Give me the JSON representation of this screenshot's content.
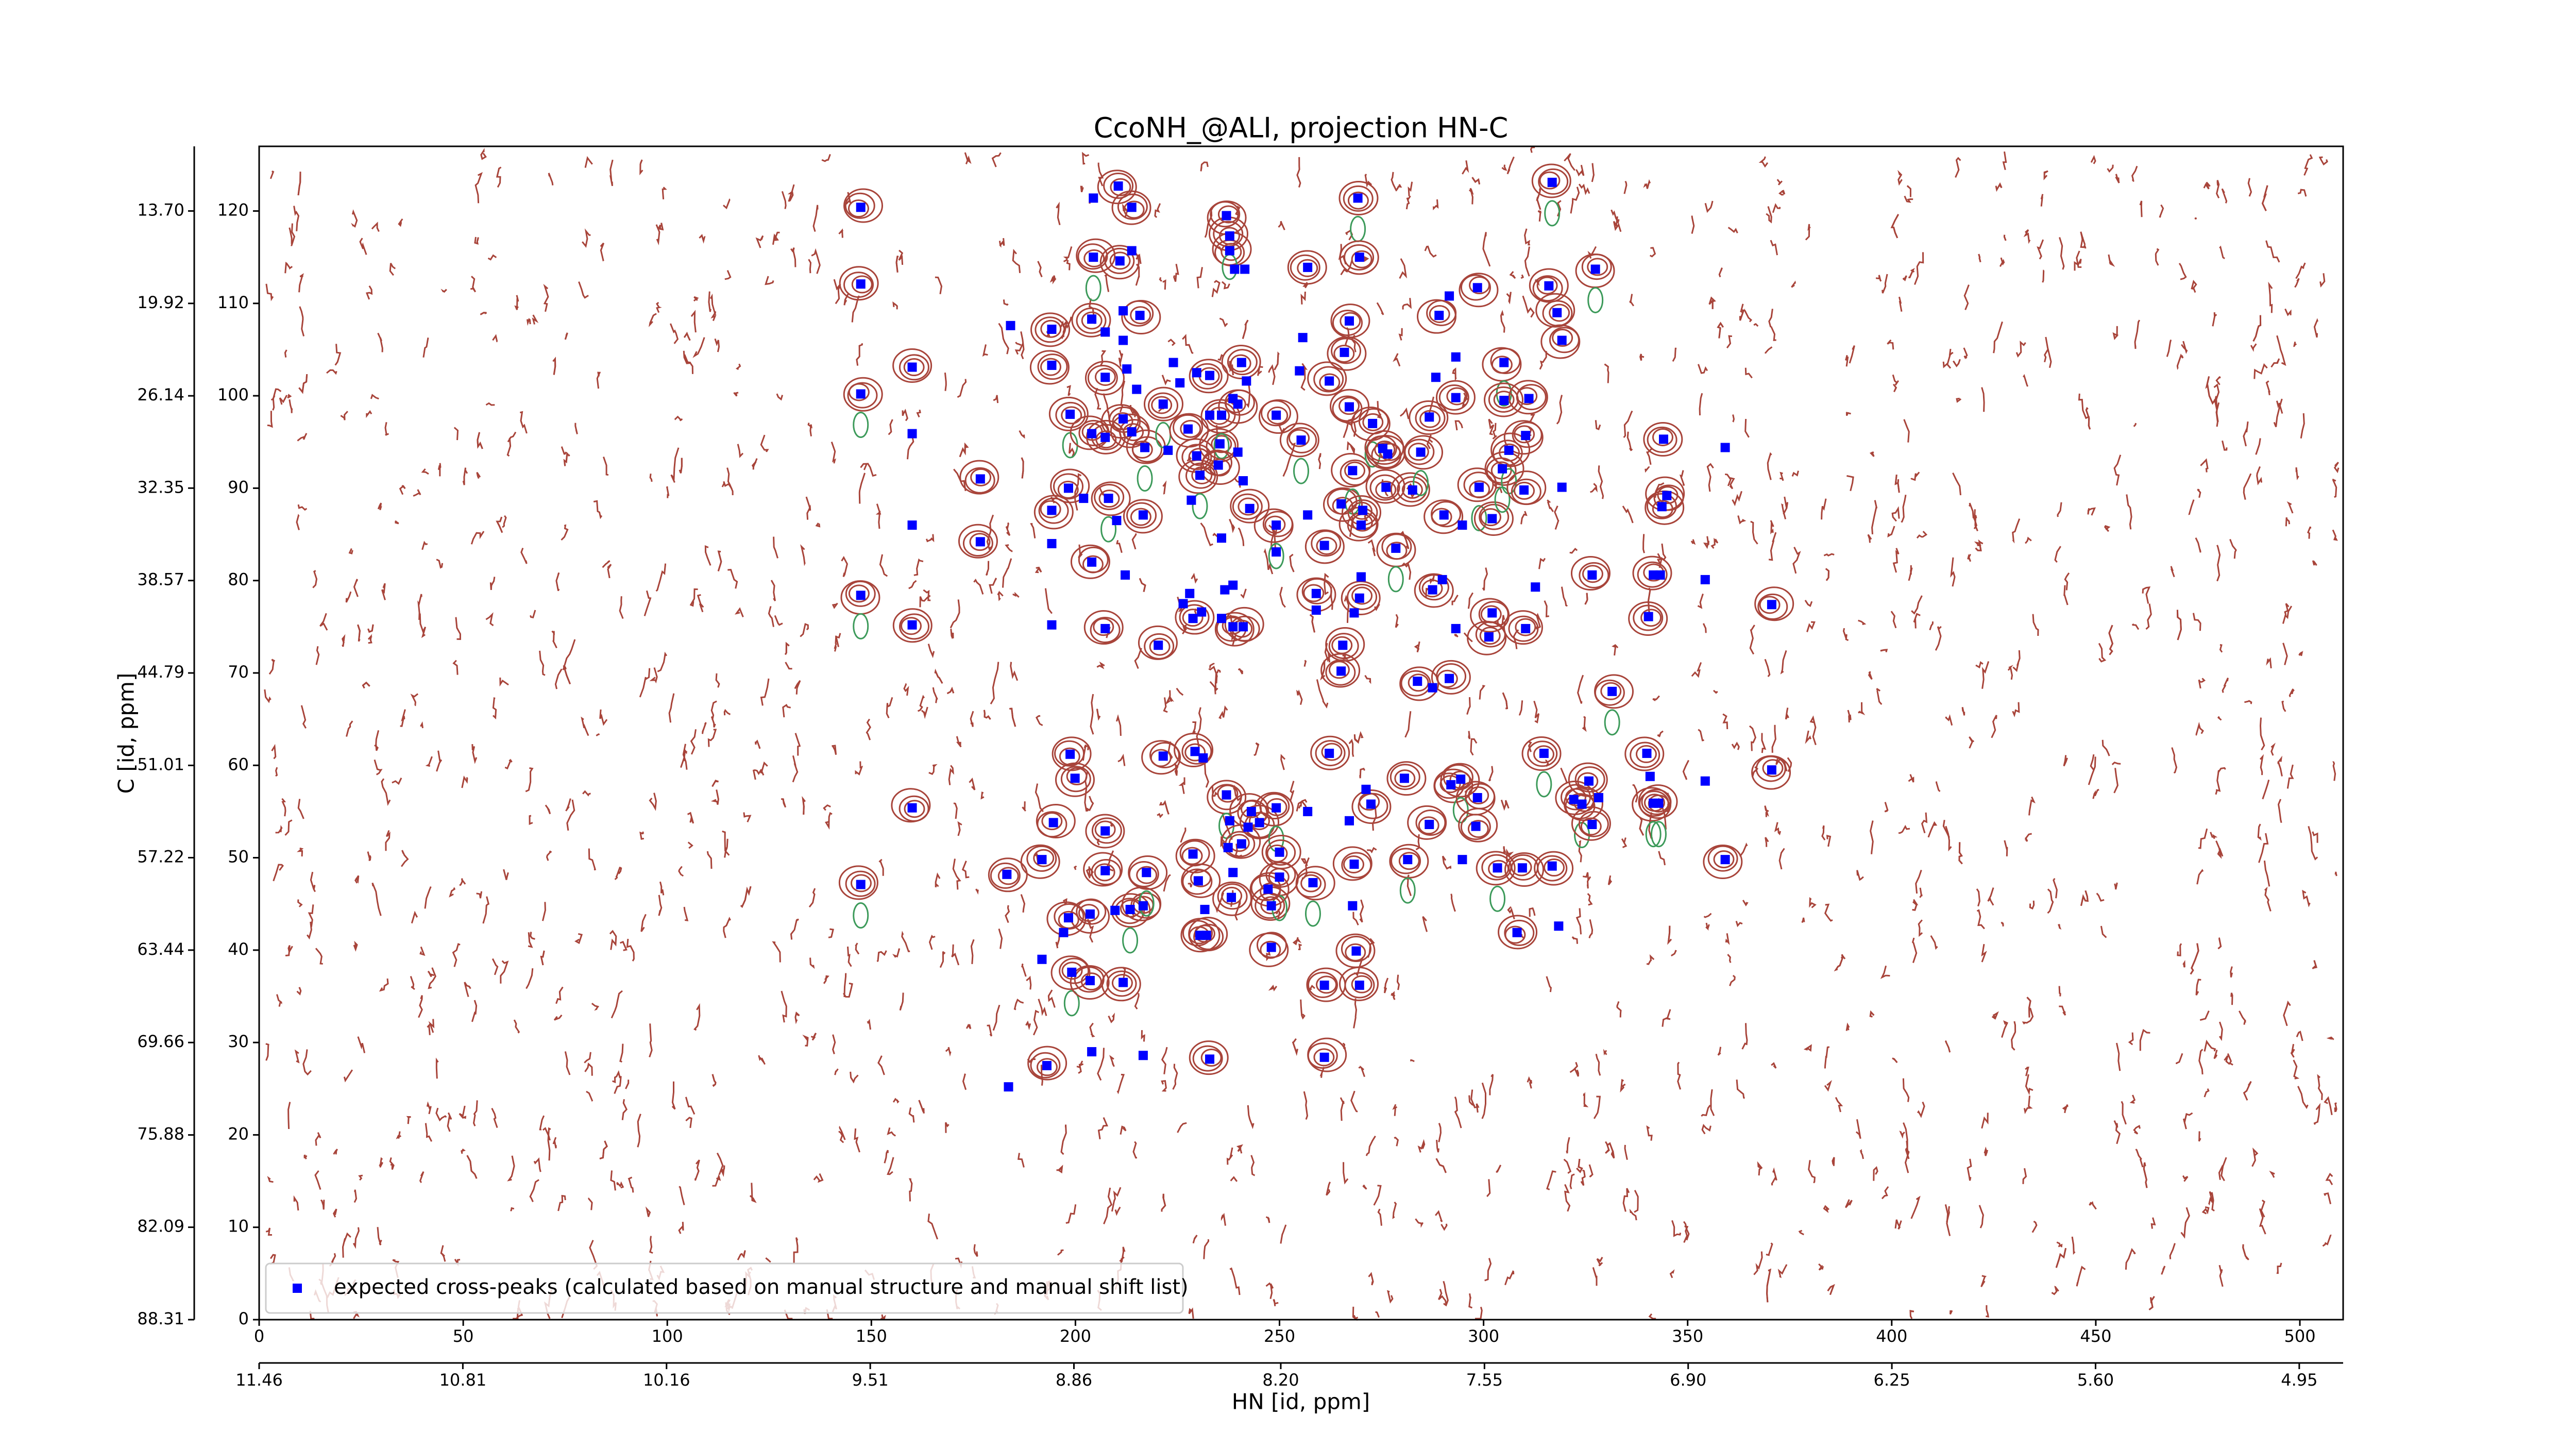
{
  "chart_data": {
    "type": "scatter",
    "title": "CcoNH_@ALI, projection HN-C",
    "x_label": "HN [id, ppm]",
    "y_label": "C [id, ppm]",
    "xlim": [
      0,
      510.6
    ],
    "ylim": [
      0,
      127
    ],
    "xticks": [
      0,
      50,
      100,
      150,
      200,
      250,
      300,
      350,
      400,
      450,
      500
    ],
    "yticks": [
      0,
      10,
      20,
      30,
      40,
      50,
      60,
      70,
      80,
      90,
      100,
      110,
      120
    ],
    "x2lim": [
      11.46,
      4.81
    ],
    "x2ticks": [
      11.46,
      10.81,
      10.16,
      9.51,
      8.86,
      {
        "value": 8.2,
        "label": "8.20"
      },
      7.55,
      {
        "value": 6.9,
        "label": "6.90"
      },
      6.25,
      {
        "value": 5.6,
        "label": "5.60"
      },
      4.95
    ],
    "y2lim": [
      88.31,
      9.35
    ],
    "y2ticks": [
      88.31,
      82.09,
      75.88,
      69.66,
      63.44,
      57.22,
      51.01,
      44.79,
      38.57,
      32.35,
      26.14,
      19.92,
      {
        "value": 13.7,
        "label": "13.70"
      }
    ],
    "legend": "lower left",
    "series": [
      {
        "name": "expected cross-peaks (calculated based on manual structure and manual shift list)",
        "color": "#0000ff",
        "x": [
          147.4,
          147.4,
          147.4,
          147.4,
          147.4,
          160.0,
          160.0,
          160.0,
          160.0,
          160.0,
          176.7,
          176.7,
          184.1,
          183.2,
          183.6,
          191.8,
          193.0,
          194.2,
          194.2,
          194.2,
          194.2,
          194.2,
          194.6,
          191.8,
          199.9,
          198.7,
          198.7,
          198.3,
          202.0,
          204.0,
          204.4,
          204.4,
          204.0,
          204.0,
          207.3,
          207.3,
          207.3,
          207.3,
          207.3,
          207.3,
          208.1,
          210.5,
          210.9,
          210.1,
          211.7,
          211.7,
          211.7,
          211.7,
          212.6,
          213.8,
          213.8,
          213.8,
          212.2,
          215.0,
          215.8,
          217.0,
          216.6,
          216.6,
          216.6,
          209.7,
          213.4,
          199.1,
          197.1,
          198.3,
          203.6,
          203.6,
          204.0,
          217.4,
          221.5,
          220.3,
          221.5,
          222.7,
          224.0,
          225.6,
          227.6,
          228.4,
          229.7,
          229.7,
          230.5,
          226.4,
          228.0,
          228.8,
          230.9,
          232.1,
          230.5,
          231.7,
          230.1,
          228.8,
          229.3,
          231.3,
          232.9,
          232.9,
          232.9,
          235.4,
          235.8,
          235.8,
          235.0,
          236.6,
          237.0,
          237.4,
          238.6,
          238.6,
          238.6,
          238.6,
          240.7,
          237.8,
          237.8,
          238.2,
          235.8,
          237.0,
          237.8,
          239.0,
          241.5,
          241.9,
          240.7,
          239.8,
          239.8,
          241.1,
          241.1,
          242.7,
          242.3,
          243.1,
          245.1,
          248.0,
          248.0,
          249.2,
          249.2,
          249.2,
          249.2,
          250.0,
          250.0,
          247.2,
          256.9,
          256.9,
          256.9,
          255.7,
          254.9,
          255.3,
          258.2,
          259.0,
          259.0,
          261.0,
          261.0,
          261.0,
          262.2,
          262.2,
          265.1,
          265.1,
          265.5,
          265.9,
          267.1,
          267.1,
          267.1,
          267.9,
          267.9,
          268.8,
          269.2,
          269.6,
          269.6,
          269.6,
          268.3,
          268.3,
          270.0,
          270.0,
          270.4,
          271.2,
          272.8,
          272.4,
          275.3,
          276.5,
          276.1,
          278.5,
          280.6,
          281.4,
          282.6,
          283.8,
          284.6,
          286.7,
          286.7,
          288.3,
          287.5,
          287.5,
          289.1,
          289.9,
          290.3,
          291.6,
          291.6,
          292.0,
          293.2,
          293.2,
          293.2,
          294.4,
          294.8,
          294.8,
          298.1,
          298.5,
          298.5,
          298.9,
          301.3,
          302.1,
          302.1,
          303.4,
          305.0,
          305.0,
          304.6,
          306.2,
          308.2,
          309.5,
          309.9,
          310.3,
          310.3,
          311.1,
          312.7,
          314.8,
          316.8,
          316.8,
          316.0,
          318.0,
          319.2,
          319.2,
          318.4,
          322.1,
          324.1,
          325.8,
          326.6,
          326.6,
          327.4,
          328.2,
          331.5,
          340.0,
          340.4,
          340.8,
          341.6,
          341.6,
          342.9,
          343.7,
          344.9,
          343.3,
          344.1,
          354.3,
          354.3,
          359.2,
          359.2,
          370.6,
          370.6
        ],
        "y": [
          120.4,
          112.1,
          100.2,
          78.4,
          47.1,
          75.2,
          55.4,
          103.1,
          95.9,
          86.0,
          91.0,
          84.2,
          107.6,
          48.2,
          25.2,
          39.0,
          27.5,
          75.2,
          84.0,
          87.6,
          103.3,
          107.2,
          53.8,
          49.8,
          58.6,
          61.2,
          98.0,
          90.0,
          88.9,
          82.0,
          115.0,
          121.4,
          108.3,
          95.9,
          95.5,
          102.0,
          106.9,
          74.8,
          52.9,
          48.6,
          88.9,
          122.7,
          114.6,
          86.5,
          109.2,
          106.0,
          97.5,
          36.5,
          102.9,
          120.4,
          115.7,
          96.1,
          80.6,
          100.7,
          108.7,
          94.4,
          87.1,
          44.8,
          28.6,
          44.3,
          44.4,
          37.6,
          41.9,
          43.5,
          43.9,
          36.7,
          29.0,
          48.4,
          61.0,
          73.0,
          99.1,
          94.1,
          103.6,
          101.4,
          96.4,
          88.7,
          102.5,
          93.5,
          91.4,
          77.5,
          78.6,
          75.9,
          76.6,
          41.6,
          41.6,
          44.4,
          47.5,
          50.4,
          61.5,
          60.8,
          97.9,
          102.2,
          28.2,
          94.8,
          97.9,
          84.6,
          92.5,
          79.0,
          56.8,
          51.1,
          48.4,
          75.0,
          79.5,
          99.7,
          51.5,
          54.0,
          115.7,
          45.7,
          75.9,
          119.5,
          117.3,
          113.7,
          113.7,
          101.6,
          103.6,
          99.1,
          93.9,
          90.8,
          75.0,
          87.8,
          53.3,
          55.0,
          53.8,
          40.3,
          44.8,
          55.4,
          97.9,
          86.0,
          83.1,
          50.6,
          47.9,
          46.6,
          113.9,
          87.1,
          55.0,
          106.3,
          102.7,
          95.2,
          47.3,
          78.6,
          76.8,
          83.8,
          36.2,
          28.4,
          101.6,
          61.3,
          70.2,
          88.3,
          73.0,
          104.7,
          108.1,
          98.8,
          54.0,
          91.9,
          44.8,
          39.9,
          121.4,
          115.0,
          36.2,
          78.1,
          49.3,
          76.5,
          80.4,
          86.0,
          87.6,
          57.4,
          97.0,
          55.8,
          94.3,
          93.7,
          90.1,
          83.5,
          58.6,
          49.8,
          89.8,
          69.1,
          93.9,
          97.7,
          53.6,
          102.0,
          79.0,
          68.4,
          108.7,
          80.1,
          87.1,
          69.4,
          110.8,
          57.9,
          104.2,
          99.8,
          74.8,
          58.5,
          49.8,
          86.0,
          53.4,
          111.7,
          56.5,
          90.1,
          73.9,
          76.5,
          86.7,
          48.9,
          103.6,
          99.5,
          92.1,
          94.1,
          41.9,
          48.9,
          89.8,
          95.7,
          74.8,
          99.7,
          79.3,
          61.3,
          49.1,
          123.1,
          111.9,
          109.0,
          106.0,
          90.1,
          42.6,
          56.3,
          55.8,
          58.3,
          53.6,
          80.6,
          113.7,
          56.5,
          68.0,
          61.3,
          76.1,
          58.8,
          80.6,
          55.9,
          55.9,
          88.0,
          89.2,
          80.6,
          95.3,
          80.1,
          58.3,
          94.4,
          49.8,
          77.4,
          59.5
        ]
      }
    ]
  }
}
